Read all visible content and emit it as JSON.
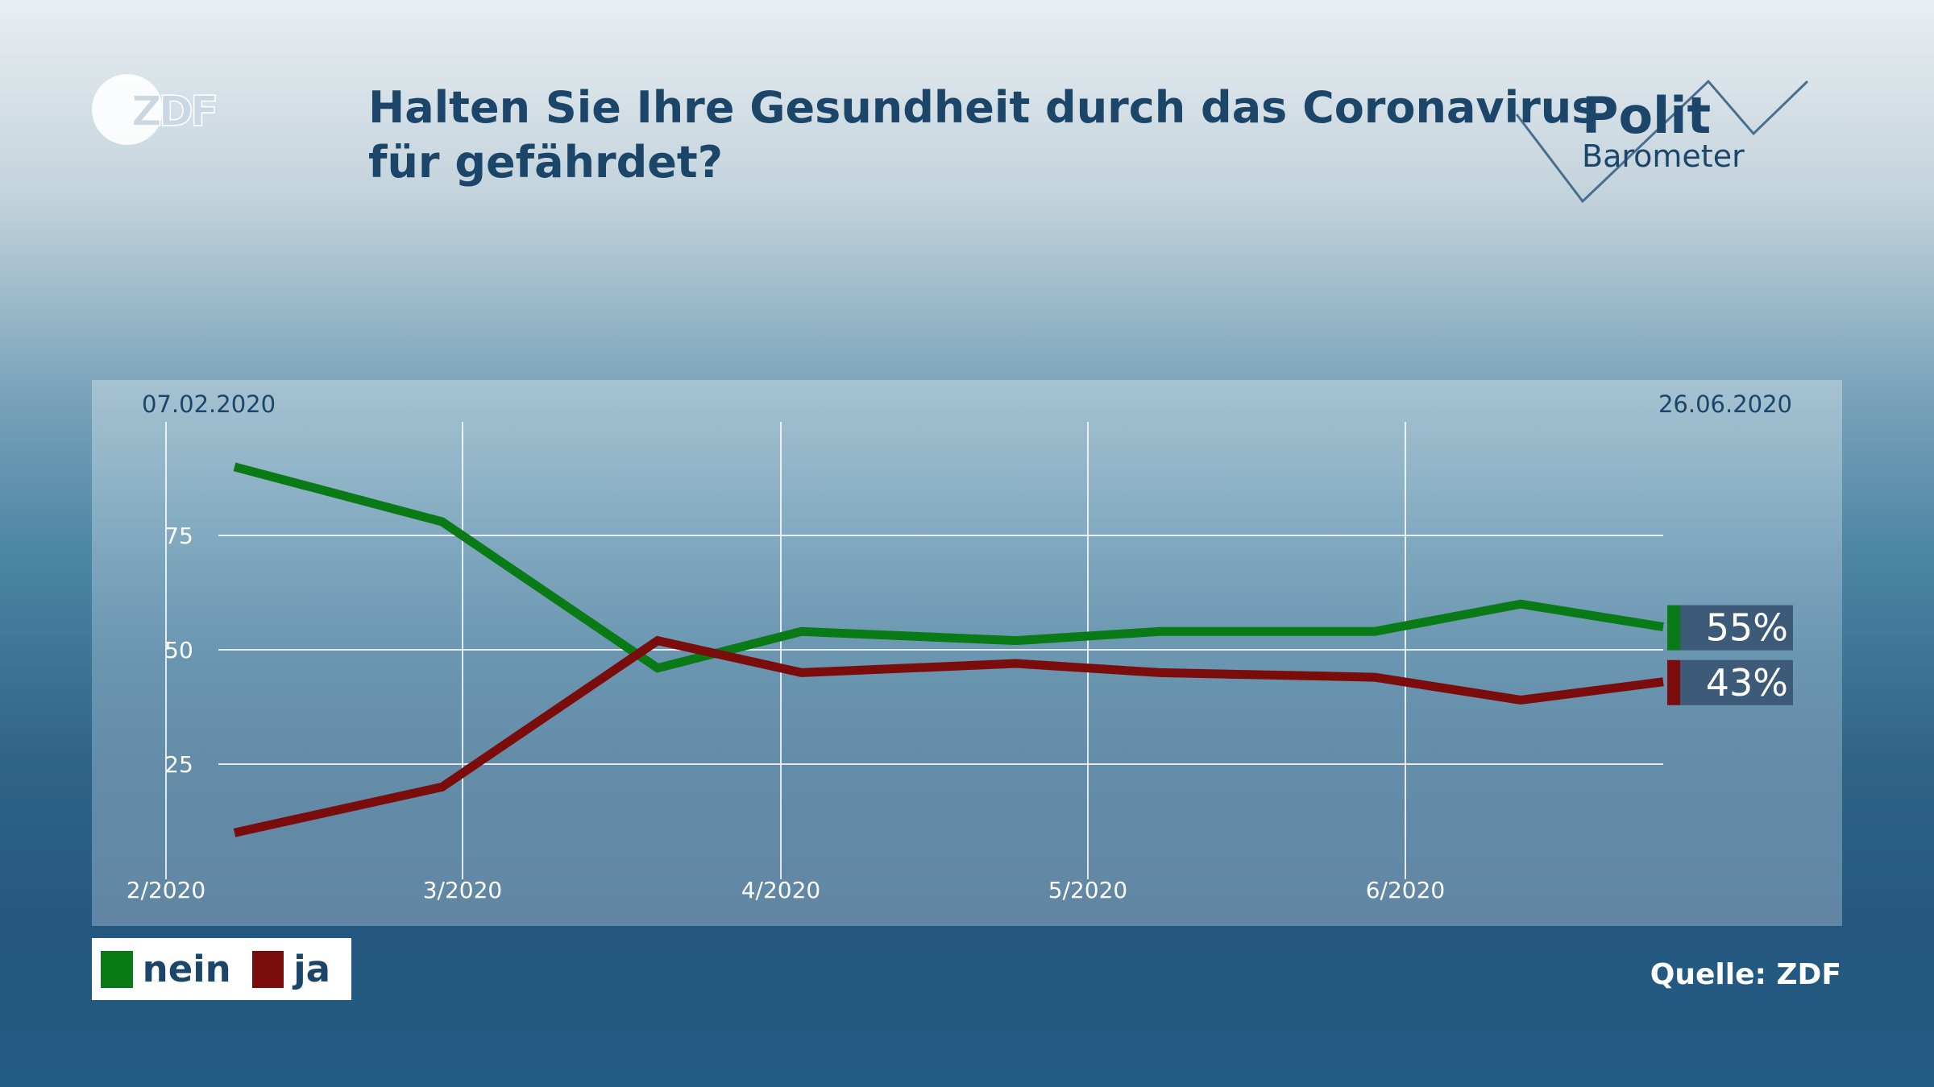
{
  "brand": {
    "logo": "ZDF",
    "polit_line1": "Polit",
    "polit_line2": "Barometer"
  },
  "title_lines": [
    "Halten Sie Ihre Gesundheit durch das Coronavirus",
    "für gefährdet?"
  ],
  "date_start": "07.02.2020",
  "date_end": "26.06.2020",
  "legend": [
    {
      "label": "nein",
      "color": "#0a7a16"
    },
    {
      "label": "ja",
      "color": "#7a0c0c"
    }
  ],
  "source": "Quelle: ZDF",
  "chart_data": {
    "type": "line",
    "x": [
      "07.02.2020",
      "28.02.2020",
      "20.03.2020",
      "03.04.2020",
      "24.04.2020",
      "08.05.2020",
      "29.05.2020",
      "12.06.2020",
      "26.06.2020"
    ],
    "x_ticks": [
      "2/2020",
      "3/2020",
      "4/2020",
      "5/2020",
      "6/2020"
    ],
    "y_ticks": [
      25,
      50,
      75
    ],
    "ylim": [
      0,
      100
    ],
    "grid": true,
    "series": [
      {
        "name": "nein",
        "color": "#0a7a16",
        "values": [
          90,
          78,
          46,
          54,
          52,
          54,
          54,
          60,
          55
        ],
        "end_label": "55%"
      },
      {
        "name": "ja",
        "color": "#7a0c0c",
        "values": [
          10,
          20,
          52,
          45,
          47,
          45,
          44,
          39,
          43
        ],
        "end_label": "43%"
      }
    ]
  }
}
